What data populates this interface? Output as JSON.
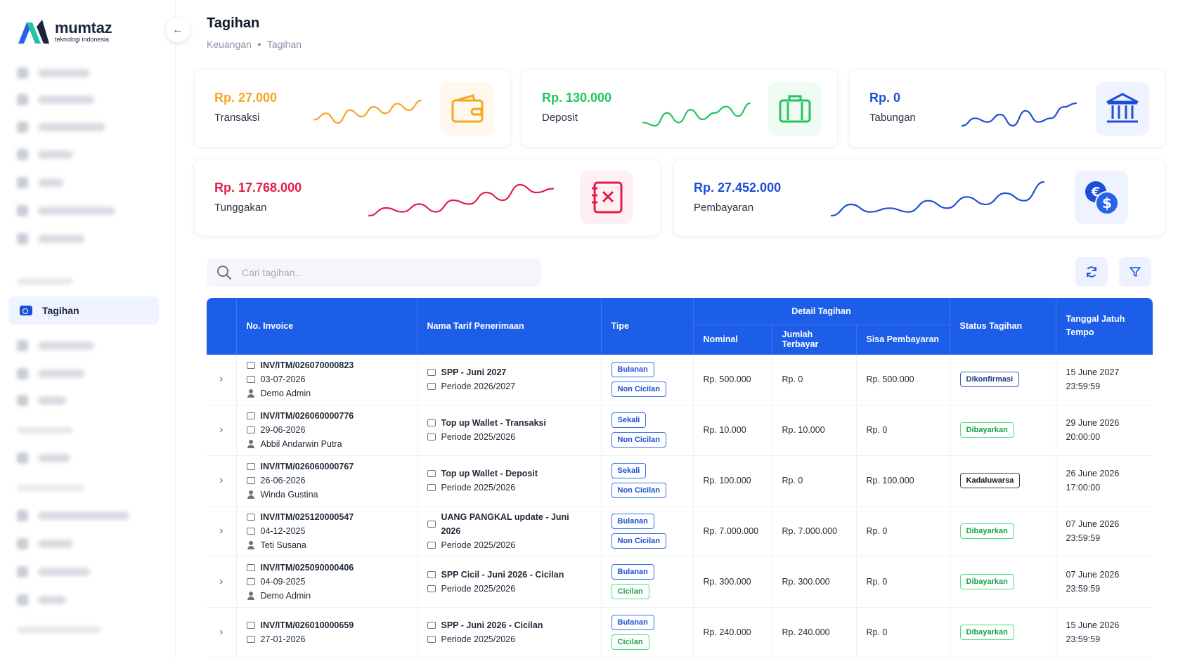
{
  "brand": {
    "name": "mumtaz",
    "tagline": "teknologi indonesia"
  },
  "sidebar": {
    "active_label": "Tagihan"
  },
  "header": {
    "title": "Tagihan",
    "breadcrumb": [
      "Keuangan",
      "Tagihan"
    ]
  },
  "stats": [
    {
      "amount": "Rp. 27.000",
      "label": "Transaksi",
      "color": "#f5a623",
      "icon": "wallet-icon",
      "trend": [
        4,
        6,
        3,
        7,
        5,
        8,
        6,
        9,
        7,
        10
      ]
    },
    {
      "amount": "Rp. 130.000",
      "label": "Deposit",
      "color": "#22c55e",
      "icon": "briefcase-icon",
      "trend": [
        3,
        2,
        6,
        3,
        7,
        4,
        6,
        8,
        5,
        9
      ]
    },
    {
      "amount": "Rp. 0",
      "label": "Tabungan",
      "color": "#1d4ed8",
      "icon": "bank-icon",
      "trend": [
        3,
        5,
        4,
        6,
        3,
        7,
        4,
        5,
        8,
        9
      ]
    },
    {
      "amount": "Rp. 17.768.000",
      "label": "Tunggakan",
      "color": "#e11d48",
      "icon": "ledger-cross-icon",
      "trend": [
        2,
        4,
        3,
        5,
        3,
        6,
        5,
        8,
        6,
        10,
        8,
        9
      ]
    },
    {
      "amount": "Rp. 27.452.000",
      "label": "Pembayaran",
      "color": "#1d4ed8",
      "icon": "currency-exchange-icon",
      "trend": [
        2,
        5,
        3,
        4,
        3,
        6,
        4,
        7,
        5,
        8,
        6,
        11
      ]
    }
  ],
  "search": {
    "placeholder": "Cari tagihan..."
  },
  "table": {
    "headers": {
      "invoice": "No. Invoice",
      "tarif": "Nama Tarif Penerimaan",
      "tipe": "Tipe",
      "detail": "Detail Tagihan",
      "nominal": "Nominal",
      "terbayar": "Jumlah Terbayar",
      "sisa": "Sisa Pembayaran",
      "status": "Status Tagihan",
      "jatuh_tempo": "Tanggal Jatuh Tempo"
    },
    "rows": [
      {
        "invoice": "INV/ITM/026070000823",
        "date": "03-07-2026",
        "user": "Demo Admin",
        "tarif": "SPP - Juni 2027",
        "periode": "Periode 2026/2027",
        "tipe1": "Bulanan",
        "tipe2": "Non Cicilan",
        "nominal": "Rp. 500.000",
        "terbayar": "Rp. 0",
        "sisa": "Rp. 500.000",
        "status": "Dikonfirmasi",
        "status_type": "navy",
        "due_date": "15 June 2027",
        "due_time": "23:59:59"
      },
      {
        "invoice": "INV/ITM/026060000776",
        "date": "29-06-2026",
        "user": "Abbil Andarwin Putra",
        "tarif": "Top up Wallet - Transaksi",
        "periode": "Periode 2025/2026",
        "tipe1": "Sekali",
        "tipe2": "Non Cicilan",
        "nominal": "Rp. 10.000",
        "terbayar": "Rp. 10.000",
        "sisa": "Rp. 0",
        "status": "Dibayarkan",
        "status_type": "green",
        "due_date": "29 June 2026",
        "due_time": "20:00:00"
      },
      {
        "invoice": "INV/ITM/026060000767",
        "date": "26-06-2026",
        "user": "Winda Gustina",
        "tarif": "Top up Wallet - Deposit",
        "periode": "Periode 2025/2026",
        "tipe1": "Sekali",
        "tipe2": "Non Cicilan",
        "nominal": "Rp. 100.000",
        "terbayar": "Rp. 0",
        "sisa": "Rp. 100.000",
        "status": "Kadaluwarsa",
        "status_type": "dark",
        "due_date": "26 June 2026",
        "due_time": "17:00:00"
      },
      {
        "invoice": "INV/ITM/025120000547",
        "date": "04-12-2025",
        "user": "Teti Susana",
        "tarif": "UANG PANGKAL update - Juni 2026",
        "periode": "Periode 2025/2026",
        "tipe1": "Bulanan",
        "tipe2": "Non Cicilan",
        "nominal": "Rp. 7.000.000",
        "terbayar": "Rp. 7.000.000",
        "sisa": "Rp. 0",
        "status": "Dibayarkan",
        "status_type": "green",
        "due_date": "07 June 2026",
        "due_time": "23:59:59"
      },
      {
        "invoice": "INV/ITM/025090000406",
        "date": "04-09-2025",
        "user": "Demo Admin",
        "tarif": "SPP Cicil - Juni 2026 - Cicilan",
        "periode": "Periode 2025/2026",
        "tipe1": "Bulanan",
        "tipe2": "Cicilan",
        "nominal": "Rp. 300.000",
        "terbayar": "Rp. 300.000",
        "sisa": "Rp. 0",
        "status": "Dibayarkan",
        "status_type": "green",
        "due_date": "07 June 2026",
        "due_time": "23:59:59"
      },
      {
        "invoice": "INV/ITM/026010000659",
        "date": "27-01-2026",
        "user": "",
        "tarif": "SPP - Juni 2026 - Cicilan",
        "periode": "Periode 2025/2026",
        "tipe1": "Bulanan",
        "tipe2": "Cicilan",
        "nominal": "Rp. 240.000",
        "terbayar": "Rp. 240.000",
        "sisa": "Rp. 0",
        "status": "Dibayarkan",
        "status_type": "green",
        "due_date": "15 June 2026",
        "due_time": "23:59:59"
      }
    ]
  }
}
